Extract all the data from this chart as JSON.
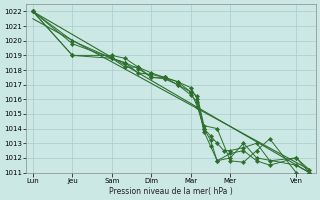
{
  "background_color": "#cce8e4",
  "grid_color": "#aacccc",
  "line_color": "#2d6e2d",
  "xlabel": "Pression niveau de la mer( hPa )",
  "ylim": [
    1011,
    1022.5
  ],
  "yticks": [
    1011,
    1012,
    1013,
    1014,
    1015,
    1016,
    1017,
    1018,
    1019,
    1020,
    1021,
    1022
  ],
  "xtick_labels": [
    "Lun",
    "Jeu",
    "Sam",
    "Dim",
    "Mar",
    "Mer",
    "Ven"
  ],
  "xtick_positions": [
    0,
    3,
    6,
    9,
    12,
    15,
    20
  ],
  "xlim": [
    -0.5,
    21.5
  ],
  "trend1_x": [
    0,
    21
  ],
  "trend1_y": [
    1022.0,
    1011.0
  ],
  "trend2_x": [
    0,
    21
  ],
  "trend2_y": [
    1021.5,
    1011.2
  ],
  "line1_x": [
    0,
    3,
    6,
    7,
    8,
    9,
    10,
    11,
    12,
    12.5,
    13,
    14,
    15,
    16,
    17,
    18,
    20
  ],
  "line1_y": [
    1022.0,
    1020.0,
    1018.8,
    1018.5,
    1018.1,
    1017.5,
    1017.4,
    1017.0,
    1016.5,
    1016.2,
    1014.2,
    1014.0,
    1011.8,
    1011.7,
    1012.5,
    1013.3,
    1011.0
  ],
  "line2_x": [
    0,
    3,
    6,
    7,
    8,
    9,
    10,
    11,
    12,
    12.5,
    13,
    13.5,
    14,
    14.5,
    15,
    16,
    17,
    18,
    20,
    21
  ],
  "line2_y": [
    1022.0,
    1019.0,
    1019.0,
    1018.8,
    1018.2,
    1017.8,
    1017.5,
    1017.2,
    1016.8,
    1016.0,
    1014.0,
    1013.5,
    1013.0,
    1012.5,
    1012.5,
    1012.7,
    1013.0,
    1011.8,
    1012.0,
    1011.0
  ],
  "line3_x": [
    0,
    3,
    6,
    7,
    8,
    9,
    10,
    11,
    12,
    12.5,
    13,
    13.5,
    14,
    15,
    16,
    17,
    18,
    20,
    21
  ],
  "line3_y": [
    1022.0,
    1019.8,
    1018.8,
    1018.5,
    1017.8,
    1017.7,
    1017.5,
    1017.0,
    1016.3,
    1015.8,
    1013.8,
    1012.8,
    1011.8,
    1012.3,
    1012.5,
    1011.8,
    1011.5,
    1012.0,
    1011.2
  ],
  "line4_x": [
    0,
    3,
    6,
    7,
    8,
    9,
    10,
    11,
    12,
    12.5,
    13,
    13.5,
    14,
    15,
    16,
    17,
    20,
    21
  ],
  "line4_y": [
    1022.0,
    1019.0,
    1018.8,
    1018.2,
    1018.2,
    1017.5,
    1017.5,
    1017.2,
    1016.5,
    1015.5,
    1014.0,
    1013.2,
    1011.8,
    1012.0,
    1013.0,
    1012.0,
    1011.5,
    1011.0
  ]
}
